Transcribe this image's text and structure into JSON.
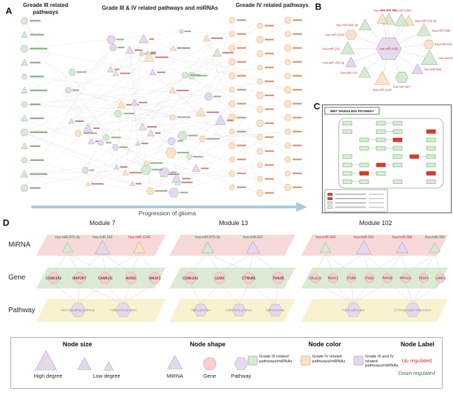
{
  "panels": {
    "a": "A",
    "b": "B",
    "c": "C",
    "d": "D"
  },
  "panelA": {
    "col1_header": "Greade III related pathways",
    "col2_header": "Grade III & IV related pathways and miRNAs",
    "col3_header": "Greade IV related pathways",
    "arrow_label": "Progression of glioma"
  },
  "panelB": {
    "center_label": "hsa-miR-4668",
    "node_labels": [
      "hsa-mir-299",
      "hsa-miR-543-5p",
      "hsa-miR-548b",
      "hsa-miR-653",
      "hsa-miR-629-5p",
      "hsa-miR-586",
      "hsa-miR-607",
      "hsa-miR-1246",
      "hsa-miR-143",
      "hsa-miR-490-3p",
      "hsa-miR-219",
      "hsa-miR-5240",
      "hsa-miR-590-3p",
      "hsa-miR-300",
      "hsa-miR-548a"
    ]
  },
  "panelC": {
    "title": "WNT SIGNALING PATHWAY"
  },
  "panelD": {
    "row_labels": [
      "MiRNA",
      "Gene",
      "Pathway"
    ],
    "modules": [
      {
        "title": "Module 7",
        "mirnas": [
          {
            "label": "hsa-miR-875-3p",
            "reg": "down"
          },
          {
            "label": "hsa-miR-143",
            "reg": "down"
          },
          {
            "label": "hsa-miR-1246",
            "reg": "up"
          }
        ],
        "genes": [
          "CSNK2A2",
          "MAP2K7",
          "CAMK2G",
          "AXIN2",
          "WASF3"
        ],
        "pathways": [
          "Wnt signaling pathway",
          "Adherens junction"
        ]
      },
      {
        "title": "Module 13",
        "mirnas": [
          {
            "label": "hsa-miR-875-3p",
            "reg": "down"
          },
          {
            "label": "hsa-miR-637",
            "reg": "down"
          }
        ],
        "genes": [
          "CSNK2A2",
          "LEM3",
          "CTNNA1",
          "TRA2B"
        ],
        "pathways": [
          "Tight junction",
          "Adherens junction",
          "Spliceosome"
        ]
      },
      {
        "title": "Module 102",
        "mirnas": [
          {
            "label": "hsa-miR-204",
            "reg": "up"
          },
          {
            "label": "hsa-miR-920",
            "reg": "up"
          },
          {
            "label": "hsa-miR-588",
            "reg": "up"
          },
          {
            "label": "hsa-miR-383",
            "reg": "down"
          }
        ],
        "genes": [
          "COL11A2",
          "ROCK1",
          "ITGB8",
          "ITGB1",
          "RAP1B",
          "PPP1CA",
          "VEGFA",
          "LAMC1"
        ],
        "pathways": [
          "Focal adhesion",
          "ECM-receptor interaction"
        ]
      }
    ]
  },
  "legend": {
    "size_header": "Node size",
    "high_degree": "High degree",
    "low_degree": "Low degree",
    "shape_header": "Node shape",
    "shape_mirna": "MiRNA",
    "shape_gene": "Gene",
    "shape_pathway": "Pathway",
    "color_header": "Node color",
    "color_grade3": "Grade III related pathways/miRNAs",
    "color_grade4": "Grade IV related pathways/miRNAs",
    "color_grade34": "Grade III and IV related pathways/miRNAs",
    "label_header": "Node Label",
    "up": "Up regulated",
    "down": "Down regulated"
  }
}
